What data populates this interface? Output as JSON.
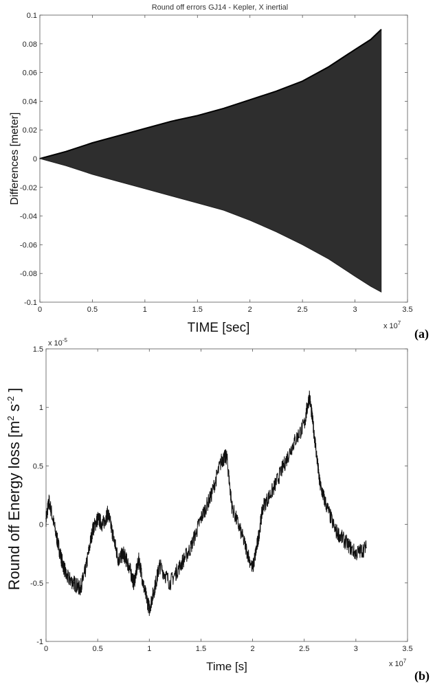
{
  "chart_data": [
    {
      "type": "area",
      "panel": "(a)",
      "title": "Round off errors GJ14 - Kepler, X inertial",
      "xlabel": "TIME [sec]",
      "ylabel": "Differences [meter]",
      "xlim": [
        0,
        3.5
      ],
      "ylim": [
        -0.1,
        0.1
      ],
      "x_exponent_label": "x 10",
      "x_exponent": "7",
      "x_ticks": [
        "0",
        "0.5",
        "1",
        "1.5",
        "2",
        "2.5",
        "3",
        "3.5"
      ],
      "y_ticks": [
        "0.1",
        "0.08",
        "0.06",
        "0.04",
        "0.02",
        "0",
        "-0.02",
        "-0.04",
        "-0.06",
        "-0.08",
        "-0.1"
      ],
      "color": "#2e2e2e",
      "x": [
        0,
        0.25,
        0.5,
        0.75,
        1.0,
        1.25,
        1.5,
        1.75,
        2.0,
        2.25,
        2.5,
        2.75,
        3.0,
        3.15,
        3.25
      ],
      "upper": [
        0,
        0.005,
        0.011,
        0.016,
        0.021,
        0.026,
        0.03,
        0.035,
        0.041,
        0.047,
        0.054,
        0.064,
        0.076,
        0.083,
        0.09
      ],
      "lower": [
        0,
        -0.005,
        -0.011,
        -0.016,
        -0.021,
        -0.026,
        -0.031,
        -0.036,
        -0.043,
        -0.051,
        -0.06,
        -0.07,
        -0.082,
        -0.089,
        -0.093
      ]
    },
    {
      "type": "line",
      "panel": "(b)",
      "title": "",
      "xlabel": "Time [s]",
      "ylabel": "Round off Energy loss [m² s⁻²]",
      "ylabel_parts": [
        "Round off Energy loss [m",
        "2",
        " s",
        "-2",
        " ]"
      ],
      "xlim": [
        0,
        3.5
      ],
      "ylim": [
        -1,
        1.5
      ],
      "x_exponent_label": "x 10",
      "x_exponent": "7",
      "y_exponent_label": "x 10",
      "y_exponent": "-5",
      "x_ticks": [
        "0",
        "0.5",
        "1",
        "1.5",
        "2",
        "2.5",
        "3",
        "3.5"
      ],
      "y_ticks": [
        "1.5",
        "1",
        "0.5",
        "0",
        "-0.5",
        "-1"
      ],
      "color": "#111111",
      "x": [
        0,
        0.03,
        0.1,
        0.15,
        0.2,
        0.27,
        0.33,
        0.38,
        0.45,
        0.5,
        0.55,
        0.6,
        0.65,
        0.7,
        0.75,
        0.8,
        0.85,
        0.9,
        0.95,
        1.0,
        1.05,
        1.1,
        1.2,
        1.3,
        1.4,
        1.5,
        1.6,
        1.7,
        1.75,
        1.8,
        1.9,
        2.0,
        2.05,
        2.1,
        2.2,
        2.3,
        2.4,
        2.5,
        2.55,
        2.6,
        2.65,
        2.7,
        2.8,
        2.9,
        3.0,
        3.1
      ],
      "y": [
        0.05,
        0.2,
        -0.1,
        -0.3,
        -0.45,
        -0.5,
        -0.55,
        -0.4,
        -0.05,
        0.05,
        0.0,
        0.1,
        -0.1,
        -0.3,
        -0.25,
        -0.35,
        -0.5,
        -0.3,
        -0.55,
        -0.72,
        -0.55,
        -0.35,
        -0.5,
        -0.35,
        -0.2,
        0.05,
        0.25,
        0.55,
        0.58,
        0.15,
        -0.1,
        -0.38,
        -0.15,
        0.15,
        0.3,
        0.5,
        0.7,
        0.85,
        1.1,
        0.75,
        0.35,
        0.2,
        -0.05,
        -0.15,
        -0.25,
        -0.2
      ]
    }
  ]
}
